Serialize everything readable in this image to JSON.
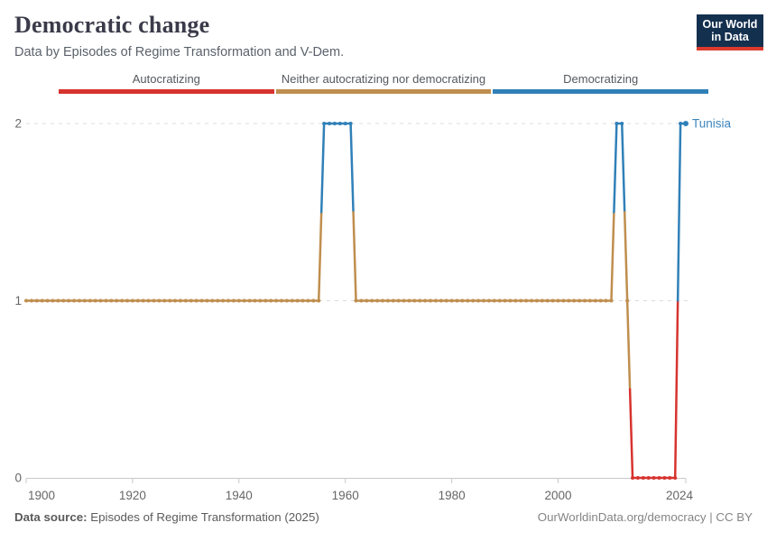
{
  "header": {
    "title": "Democratic change",
    "subtitle": "Data by Episodes of Regime Transformation and V-Dem.",
    "logo_line1": "Our World",
    "logo_line2": "in Data"
  },
  "legend": {
    "items": [
      {
        "label": "Autocratizing",
        "value": 0,
        "color": "#d7332f"
      },
      {
        "label": "Neither autocratizing nor democratizing",
        "value": 1,
        "color": "#bf8e4e"
      },
      {
        "label": "Democratizing",
        "value": 2,
        "color": "#3080b8"
      }
    ]
  },
  "chart_data": {
    "type": "line",
    "title": "Democratic change",
    "entity_label": "Tunisia",
    "entity_label_color": "#3d86bd",
    "xlabel": "",
    "ylabel": "",
    "xlim": [
      1900,
      2024
    ],
    "ylim": [
      0,
      2
    ],
    "x_ticks": [
      1900,
      1920,
      1940,
      1960,
      1980,
      2000,
      2024
    ],
    "y_ticks": [
      0,
      1,
      2
    ],
    "grid": "dashed horizontal gridlines at y=1 and y=2",
    "legend_position": "top",
    "value_meanings": {
      "0": "Autocratizing",
      "1": "Neither autocratizing nor democratizing",
      "2": "Democratizing"
    },
    "value_colors": {
      "0": "#d7332f",
      "1": "#bf8e4e",
      "2": "#3080b8"
    },
    "series": [
      {
        "name": "Tunisia",
        "runs": [
          {
            "start_year": 1900,
            "end_year": 1955,
            "value": 1
          },
          {
            "start_year": 1956,
            "end_year": 1961,
            "value": 2
          },
          {
            "start_year": 1962,
            "end_year": 2010,
            "value": 1
          },
          {
            "start_year": 2011,
            "end_year": 2012,
            "value": 2
          },
          {
            "start_year": 2013,
            "end_year": 2013,
            "value": 1
          },
          {
            "start_year": 2014,
            "end_year": 2022,
            "value": 0
          },
          {
            "start_year": 2023,
            "end_year": 2024,
            "value": 2
          }
        ]
      }
    ]
  },
  "footer": {
    "source_label": "Data source:",
    "source_text": " Episodes of Regime Transformation (2025)",
    "credit": "OurWorldinData.org/democracy | CC BY"
  }
}
